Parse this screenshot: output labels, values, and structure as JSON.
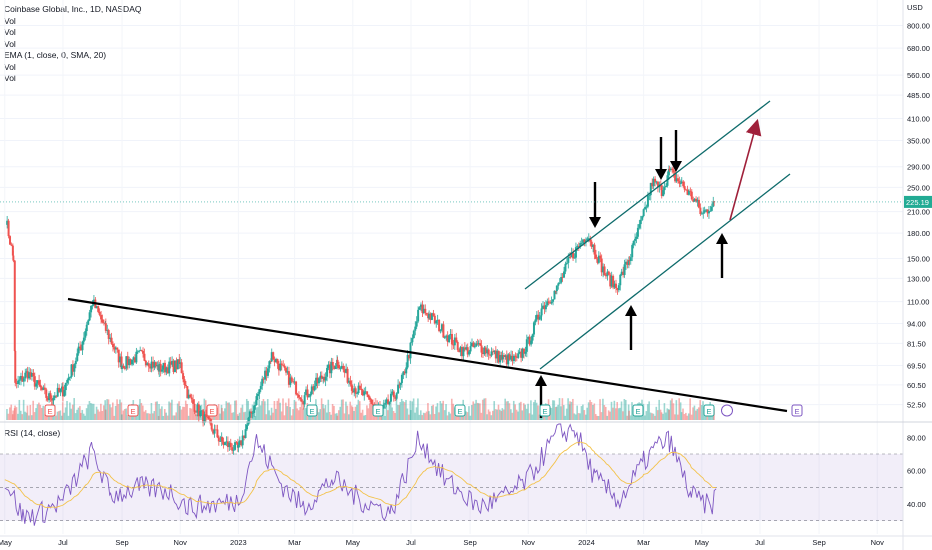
{
  "header": {
    "symbol_title": "Coinbase Global, Inc., 1D, NASDAQ",
    "indicator_lines": [
      "Vol",
      "Vol",
      "Vol",
      "EMA (1, close, 0, SMA, 20)",
      "Vol",
      "Vol"
    ],
    "currency": "USD"
  },
  "rsi_panel": {
    "title": "RSI (14, close)",
    "ticks": [
      "80.00",
      "60.00",
      "40.00"
    ]
  },
  "chart_data": {
    "type": "line",
    "scale": "log",
    "price_ticks": [
      "800.00",
      "680.00",
      "560.00",
      "485.00",
      "410.00",
      "350.00",
      "290.00",
      "250.00",
      "210.00",
      "180.00",
      "150.00",
      "130.00",
      "110.00",
      "94.00",
      "81.50",
      "69.50",
      "60.50",
      "52.50"
    ],
    "current_price_label": "225.19",
    "x_ticks": [
      "May",
      "Jul",
      "Sep",
      "Nov",
      "2023",
      "Mar",
      "May",
      "Jul",
      "Sep",
      "Nov",
      "2024",
      "Mar",
      "May",
      "Jul",
      "Sep",
      "Nov"
    ],
    "series": [
      {
        "values": [
          [
            "2022-05-02",
            200
          ],
          [
            "2022-05-10",
            150
          ],
          [
            "2022-05-12",
            60
          ],
          [
            "2022-05-25",
            66
          ],
          [
            "2022-06-15",
            55
          ],
          [
            "2022-07-01",
            58
          ],
          [
            "2022-07-20",
            80
          ],
          [
            "2022-08-01",
            110
          ],
          [
            "2022-08-15",
            90
          ],
          [
            "2022-09-01",
            70
          ],
          [
            "2022-09-20",
            75
          ],
          [
            "2022-10-10",
            68
          ],
          [
            "2022-11-01",
            70
          ],
          [
            "2022-11-10",
            55
          ],
          [
            "2022-12-15",
            40
          ],
          [
            "2023-01-01",
            38
          ],
          [
            "2023-01-20",
            55
          ],
          [
            "2023-02-05",
            75
          ],
          [
            "2023-02-20",
            65
          ],
          [
            "2023-03-10",
            55
          ],
          [
            "2023-04-01",
            65
          ],
          [
            "2023-04-15",
            72
          ],
          [
            "2023-05-01",
            60
          ],
          [
            "2023-06-01",
            50
          ],
          [
            "2023-06-20",
            60
          ],
          [
            "2023-07-01",
            80
          ],
          [
            "2023-07-10",
            105
          ],
          [
            "2023-07-20",
            100
          ],
          [
            "2023-08-10",
            85
          ],
          [
            "2023-08-25",
            77
          ],
          [
            "2023-09-10",
            80
          ],
          [
            "2023-10-05",
            73
          ],
          [
            "2023-10-20",
            72
          ],
          [
            "2023-11-01",
            82
          ],
          [
            "2023-11-15",
            105
          ],
          [
            "2023-12-01",
            120
          ],
          [
            "2023-12-15",
            150
          ],
          [
            "2024-01-02",
            180
          ],
          [
            "2024-01-20",
            135
          ],
          [
            "2024-02-01",
            122
          ],
          [
            "2024-02-15",
            150
          ],
          [
            "2024-03-01",
            205
          ],
          [
            "2024-03-10",
            260
          ],
          [
            "2024-03-20",
            245
          ],
          [
            "2024-03-28",
            280
          ],
          [
            "2024-04-10",
            255
          ],
          [
            "2024-04-25",
            225
          ],
          [
            "2024-05-01",
            205
          ],
          [
            "2024-05-14",
            225
          ]
        ]
      }
    ],
    "rsi": {
      "upper": 70,
      "middle": 50,
      "lower": 30,
      "values": [
        [
          "2022-05-01",
          55
        ],
        [
          "2022-05-20",
          32
        ],
        [
          "2022-06-10",
          35
        ],
        [
          "2022-07-01",
          42
        ],
        [
          "2022-08-01",
          72
        ],
        [
          "2022-08-20",
          45
        ],
        [
          "2022-09-20",
          50
        ],
        [
          "2022-10-20",
          48
        ],
        [
          "2022-11-10",
          38
        ],
        [
          "2022-12-10",
          40
        ],
        [
          "2023-01-01",
          42
        ],
        [
          "2023-01-20",
          78
        ],
        [
          "2023-02-15",
          52
        ],
        [
          "2023-03-10",
          38
        ],
        [
          "2023-04-10",
          55
        ],
        [
          "2023-05-10",
          42
        ],
        [
          "2023-06-10",
          35
        ],
        [
          "2023-07-10",
          80
        ],
        [
          "2023-08-05",
          55
        ],
        [
          "2023-09-10",
          38
        ],
        [
          "2023-10-10",
          45
        ],
        [
          "2023-11-01",
          55
        ],
        [
          "2023-12-01",
          82
        ],
        [
          "2023-12-20",
          85
        ],
        [
          "2024-01-10",
          55
        ],
        [
          "2024-02-05",
          42
        ],
        [
          "2024-03-01",
          65
        ],
        [
          "2024-03-15",
          75
        ],
        [
          "2024-03-28",
          78
        ],
        [
          "2024-04-20",
          45
        ],
        [
          "2024-05-10",
          38
        ],
        [
          "2024-05-18",
          48
        ]
      ]
    }
  }
}
